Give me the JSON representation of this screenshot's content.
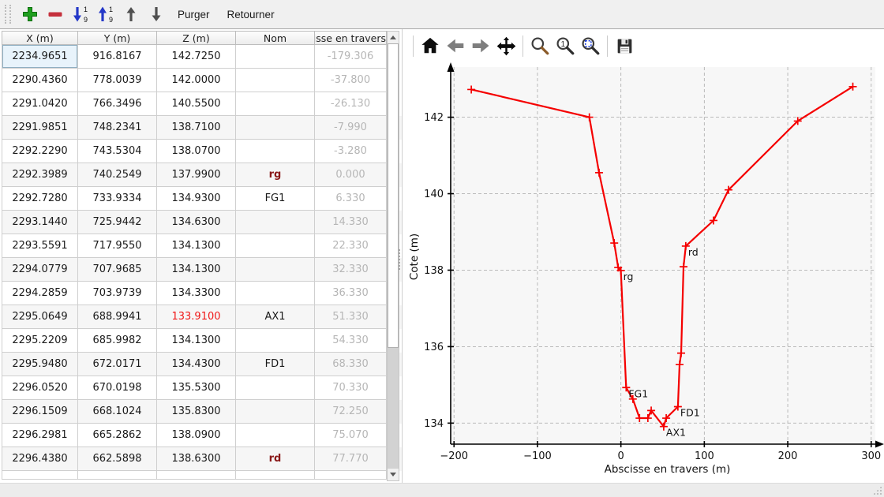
{
  "toolbar": {
    "purger_label": "Purger",
    "retourner_label": "Retourner",
    "icons": [
      "add-point-icon",
      "remove-point-icon",
      "sort-ascending-icon",
      "sort-descending-icon",
      "move-up-icon",
      "move-down-icon"
    ]
  },
  "table": {
    "headers": [
      "X (m)",
      "Y (m)",
      "Z (m)",
      "Nom",
      "Abscisse en travers"
    ],
    "rows": [
      {
        "x": "2234.9651",
        "y": "916.8167",
        "z": "142.7250",
        "nom": "",
        "abs": "-179.306",
        "selected": true
      },
      {
        "x": "2290.4360",
        "y": "778.0039",
        "z": "142.0000",
        "nom": "",
        "abs": "-37.800"
      },
      {
        "x": "2291.0420",
        "y": "766.3496",
        "z": "140.5500",
        "nom": "",
        "abs": "-26.130"
      },
      {
        "x": "2291.9851",
        "y": "748.2341",
        "z": "138.7100",
        "nom": "",
        "abs": "-7.990"
      },
      {
        "x": "2292.2290",
        "y": "743.5304",
        "z": "138.0700",
        "nom": "",
        "abs": "-3.280"
      },
      {
        "x": "2292.3989",
        "y": "740.2549",
        "z": "137.9900",
        "nom": "rg",
        "abs": "0.000",
        "nom_accent": true
      },
      {
        "x": "2292.7280",
        "y": "733.9334",
        "z": "134.9300",
        "nom": "FG1",
        "abs": "6.330"
      },
      {
        "x": "2293.1440",
        "y": "725.9442",
        "z": "134.6300",
        "nom": "",
        "abs": "14.330"
      },
      {
        "x": "2293.5591",
        "y": "717.9550",
        "z": "134.1300",
        "nom": "",
        "abs": "22.330"
      },
      {
        "x": "2294.0779",
        "y": "707.9685",
        "z": "134.1300",
        "nom": "",
        "abs": "32.330"
      },
      {
        "x": "2294.2859",
        "y": "703.9739",
        "z": "134.3300",
        "nom": "",
        "abs": "36.330"
      },
      {
        "x": "2295.0649",
        "y": "688.9941",
        "z": "133.9100",
        "nom": "AX1",
        "abs": "51.330",
        "z_red": true
      },
      {
        "x": "2295.2209",
        "y": "685.9982",
        "z": "134.1300",
        "nom": "",
        "abs": "54.330"
      },
      {
        "x": "2295.9480",
        "y": "672.0171",
        "z": "134.4300",
        "nom": "FD1",
        "abs": "68.330"
      },
      {
        "x": "2296.0520",
        "y": "670.0198",
        "z": "135.5300",
        "nom": "",
        "abs": "70.330"
      },
      {
        "x": "2296.1509",
        "y": "668.1024",
        "z": "135.8300",
        "nom": "",
        "abs": "72.250"
      },
      {
        "x": "2296.2981",
        "y": "665.2862",
        "z": "138.0900",
        "nom": "",
        "abs": "75.070"
      },
      {
        "x": "2296.4380",
        "y": "662.5898",
        "z": "138.6300",
        "nom": "rd",
        "abs": "77.770",
        "nom_accent": true
      }
    ]
  },
  "plot_toolbar": {
    "icons": [
      "home-icon",
      "back-icon",
      "forward-icon",
      "pan-icon",
      "zoom-icon",
      "zoom-one-icon",
      "zoom-region-icon",
      "save-icon"
    ]
  },
  "chart_data": {
    "type": "line",
    "title": "",
    "xlabel": "Abscisse en travers (m)",
    "ylabel": "Cote (m)",
    "x": [
      -179.306,
      -37.8,
      -26.13,
      -7.99,
      -3.28,
      0.0,
      6.33,
      14.33,
      22.33,
      32.33,
      36.33,
      51.33,
      54.33,
      68.33,
      70.33,
      72.25,
      75.07,
      77.77,
      111,
      129,
      212,
      278
    ],
    "y": [
      142.725,
      142.0,
      140.55,
      138.71,
      138.07,
      137.99,
      134.93,
      134.63,
      134.13,
      134.13,
      134.33,
      133.91,
      134.13,
      134.43,
      135.53,
      135.83,
      138.09,
      138.63,
      139.3,
      140.1,
      141.9,
      142.8
    ],
    "xticks": [
      -200,
      -100,
      0,
      100,
      200,
      300
    ],
    "xtick_labels": [
      "−200",
      "−100",
      "0",
      "100",
      "200",
      "300"
    ],
    "yticks": [
      134,
      136,
      138,
      140,
      142
    ],
    "ytick_labels": [
      "134",
      "136",
      "138",
      "140",
      "142"
    ],
    "xlim": [
      -204,
      304
    ],
    "ylim": [
      133.45,
      143.25
    ],
    "grid": true,
    "legend": null,
    "line_color": "#f50000",
    "marker": "+",
    "annotations": [
      {
        "label": "rg",
        "x": 0.0,
        "y": 137.99
      },
      {
        "label": "FG1",
        "x": 6.33,
        "y": 134.93
      },
      {
        "label": "AX1",
        "x": 51.33,
        "y": 133.91
      },
      {
        "label": "FD1",
        "x": 68.33,
        "y": 134.43
      },
      {
        "label": "rd",
        "x": 77.77,
        "y": 138.63
      }
    ]
  },
  "colors": {
    "accent_red": "#f01818",
    "name_maroon": "#8b1a1a",
    "muted_gray": "#b6b6b6",
    "selection_bg": "#e8f3fb",
    "line_red": "#f50000"
  }
}
